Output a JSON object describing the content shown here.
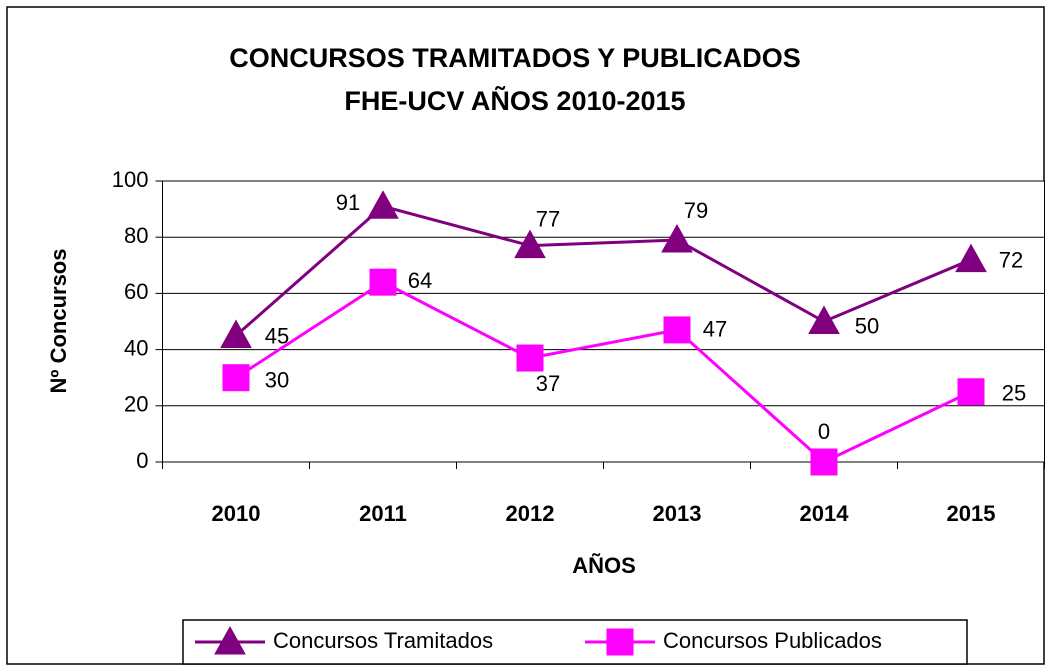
{
  "chart_data": {
    "type": "line",
    "title": [
      "CONCURSOS TRAMITADOS Y PUBLICADOS",
      "FHE-UCV AÑOS 2010-2015"
    ],
    "x_label": "AÑOS",
    "y_label": "Nº Concursos",
    "categories": [
      "2010",
      "2011",
      "2012",
      "2013",
      "2014",
      "2015"
    ],
    "series": [
      {
        "name": "Concursos Tramitados",
        "color": "#800080",
        "marker": "triangle",
        "values": [
          45,
          91,
          77,
          79,
          50,
          72
        ]
      },
      {
        "name": "Concursos Publicados",
        "color": "#ff00ff",
        "marker": "square",
        "values": [
          30,
          64,
          37,
          47,
          0,
          25
        ]
      }
    ],
    "ylim": [
      0,
      100
    ],
    "yticks": [
      0,
      20,
      40,
      60,
      80,
      100
    ],
    "grid": true,
    "legend": "bottom"
  }
}
